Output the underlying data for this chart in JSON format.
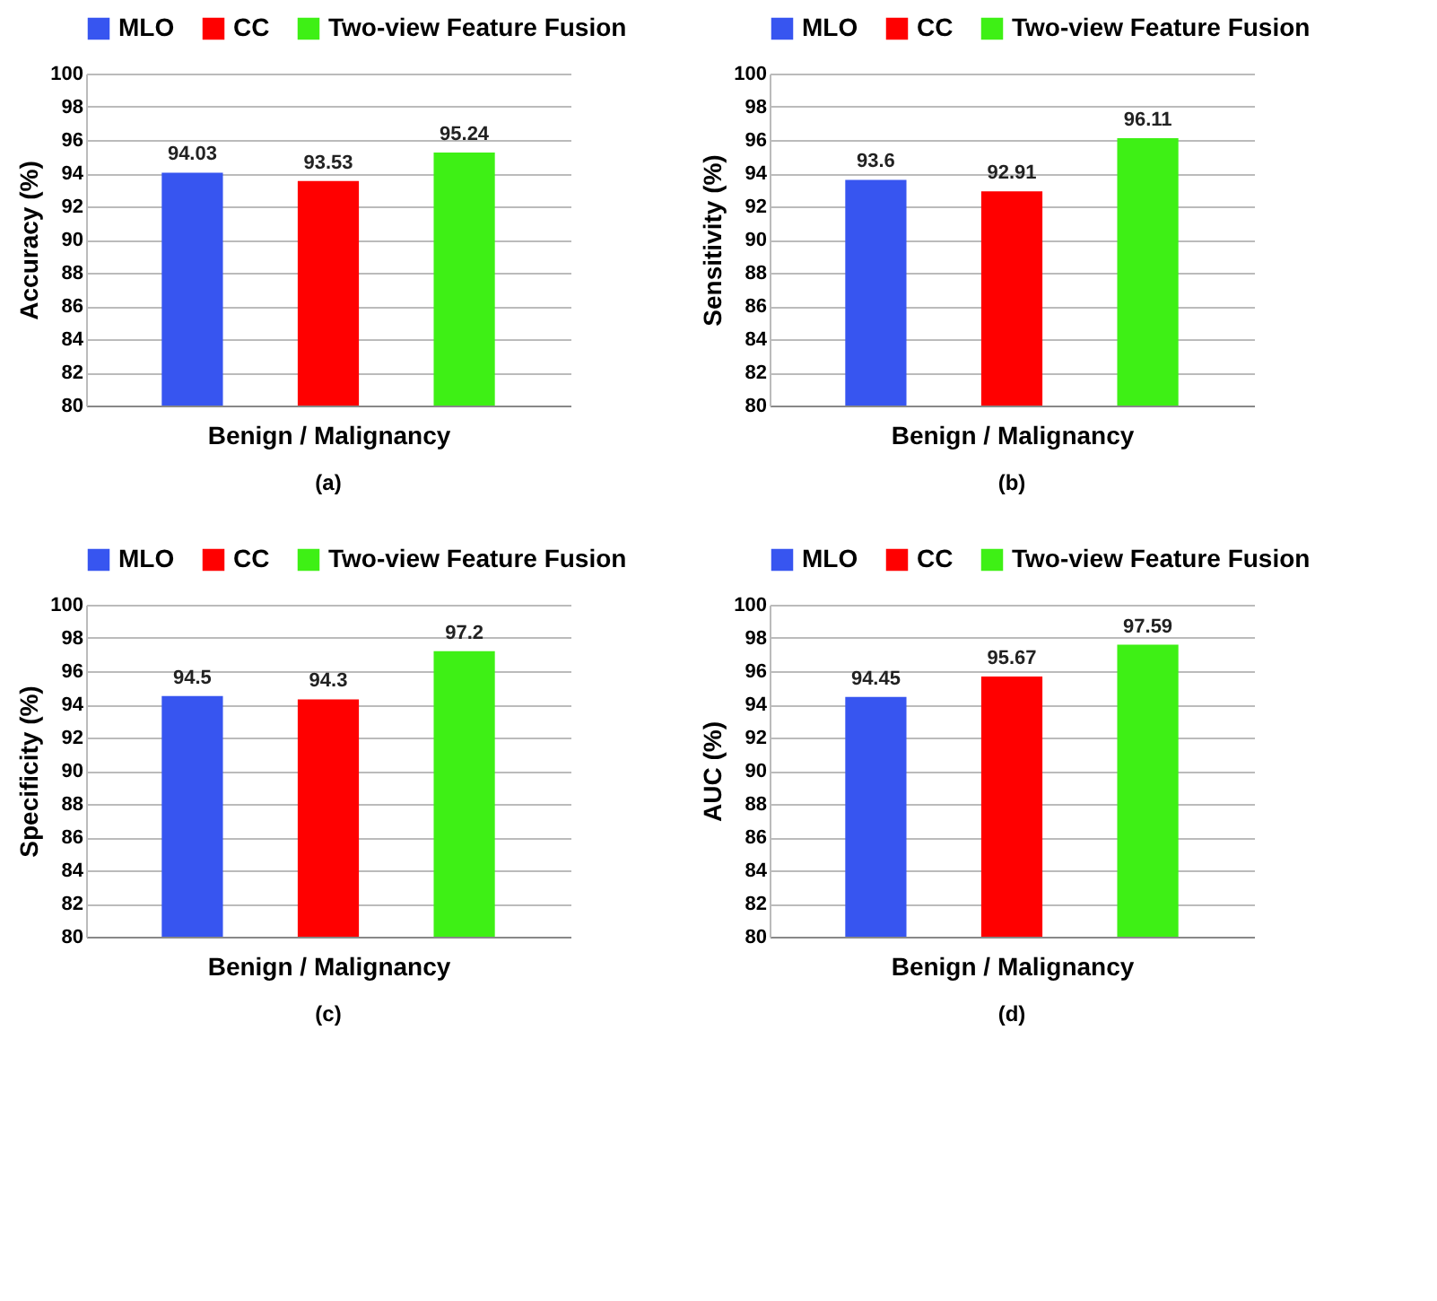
{
  "chart_data": [
    {
      "type": "bar",
      "ylabel": "Accuracy (%)",
      "xlabel": "Benign / Malignancy",
      "categories": [
        null
      ],
      "ylim": [
        80,
        100
      ],
      "yticks": [
        80,
        82,
        84,
        86,
        88,
        90,
        92,
        94,
        96,
        98,
        100
      ],
      "grid": "y",
      "legend": "top",
      "data_labels": true,
      "annotations": [
        "(a)"
      ],
      "series": [
        {
          "name": "MLO",
          "color": "#3755f0",
          "values": [
            94.03
          ]
        },
        {
          "name": "CC",
          "color": "#ff0000",
          "values": [
            93.53
          ]
        },
        {
          "name": "Two-view Feature Fusion",
          "color": "#3ef015",
          "values": [
            95.24
          ]
        }
      ]
    },
    {
      "type": "bar",
      "ylabel": "Sensitivity (%)",
      "xlabel": "Benign / Malignancy",
      "categories": [
        null
      ],
      "ylim": [
        80,
        100
      ],
      "yticks": [
        80,
        82,
        84,
        86,
        88,
        90,
        92,
        94,
        96,
        98,
        100
      ],
      "grid": "y",
      "legend": "top",
      "data_labels": true,
      "annotations": [
        "(b)"
      ],
      "series": [
        {
          "name": "MLO",
          "color": "#3755f0",
          "values": [
            93.6
          ]
        },
        {
          "name": "CC",
          "color": "#ff0000",
          "values": [
            92.91
          ]
        },
        {
          "name": "Two-view Feature Fusion",
          "color": "#3ef015",
          "values": [
            96.11
          ]
        }
      ]
    },
    {
      "type": "bar",
      "ylabel": "Specificity (%)",
      "xlabel": "Benign / Malignancy",
      "categories": [
        null
      ],
      "ylim": [
        80,
        100
      ],
      "yticks": [
        80,
        82,
        84,
        86,
        88,
        90,
        92,
        94,
        96,
        98,
        100
      ],
      "grid": "y",
      "legend": "top",
      "data_labels": true,
      "annotations": [
        "(c)"
      ],
      "series": [
        {
          "name": "MLO",
          "color": "#3755f0",
          "values": [
            94.5
          ]
        },
        {
          "name": "CC",
          "color": "#ff0000",
          "values": [
            94.3
          ]
        },
        {
          "name": "Two-view Feature Fusion",
          "color": "#3ef015",
          "values": [
            97.2
          ]
        }
      ]
    },
    {
      "type": "bar",
      "ylabel": "AUC (%)",
      "xlabel": "Benign / Malignancy",
      "categories": [
        null
      ],
      "ylim": [
        80,
        100
      ],
      "yticks": [
        80,
        82,
        84,
        86,
        88,
        90,
        92,
        94,
        96,
        98,
        100
      ],
      "grid": "y",
      "legend": "top",
      "data_labels": true,
      "annotations": [
        "(d)"
      ],
      "series": [
        {
          "name": "MLO",
          "color": "#3755f0",
          "values": [
            94.45
          ]
        },
        {
          "name": "CC",
          "color": "#ff0000",
          "values": [
            95.67
          ]
        },
        {
          "name": "Two-view Feature Fusion",
          "color": "#3ef015",
          "values": [
            97.59
          ]
        }
      ]
    }
  ]
}
